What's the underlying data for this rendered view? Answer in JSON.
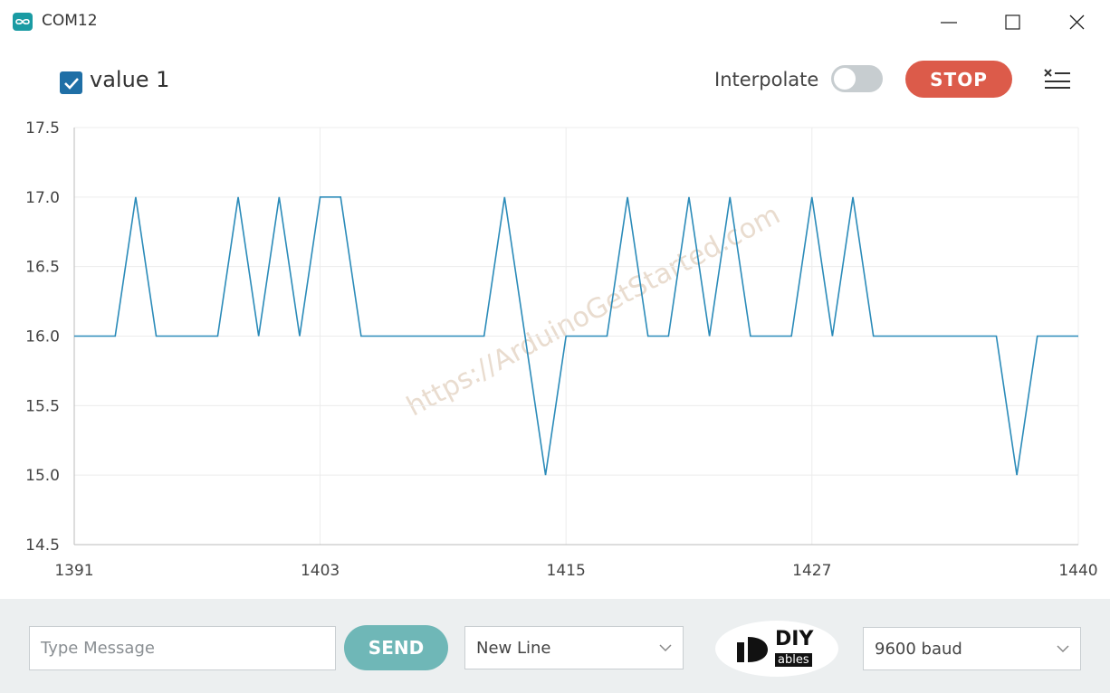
{
  "window": {
    "title": "COM12"
  },
  "toolbar": {
    "interpolate_label": "Interpolate",
    "stop_button": "STOP"
  },
  "chart_data": {
    "type": "line",
    "x": [
      1391,
      1392,
      1393,
      1394,
      1395,
      1396,
      1397,
      1398,
      1399,
      1400,
      1401,
      1402,
      1403,
      1404,
      1405,
      1406,
      1407,
      1408,
      1409,
      1410,
      1411,
      1412,
      1413,
      1414,
      1415,
      1416,
      1417,
      1418,
      1419,
      1420,
      1421,
      1422,
      1423,
      1424,
      1425,
      1426,
      1427,
      1428,
      1429,
      1430,
      1431,
      1432,
      1433,
      1434,
      1435,
      1436,
      1437,
      1438,
      1439,
      1440
    ],
    "series": [
      {
        "name": "value 1",
        "color": "#2b8bb9",
        "values": [
          16,
          16,
          16,
          17,
          16,
          16,
          16,
          16,
          17,
          16,
          17,
          16,
          17,
          17,
          16,
          16,
          16,
          16,
          16,
          16,
          16,
          17,
          16,
          15,
          16,
          16,
          16,
          17,
          16,
          16,
          17,
          16,
          17,
          16,
          16,
          16,
          17,
          16,
          17,
          16,
          16,
          16,
          16,
          16,
          16,
          16,
          15,
          16,
          16,
          16
        ]
      }
    ],
    "xlim": [
      1391,
      1440
    ],
    "xticks": [
      1391,
      1403,
      1415,
      1427,
      1440
    ],
    "ylim": [
      14.5,
      17.5
    ],
    "yticks": [
      14.5,
      {
        "value": 15,
        "label": "15.0"
      },
      15.5,
      {
        "value": 16,
        "label": "16.0"
      },
      16.5,
      {
        "value": 17,
        "label": "17.0"
      },
      17.5
    ],
    "grid": true,
    "watermark": "https://ArduinoGetStarted.com"
  },
  "footer": {
    "message_placeholder": "Type Message",
    "send_button": "SEND",
    "line_ending": "New Line",
    "logo_top": "DIY",
    "logo_bottom": "ables",
    "baud": "9600 baud"
  }
}
